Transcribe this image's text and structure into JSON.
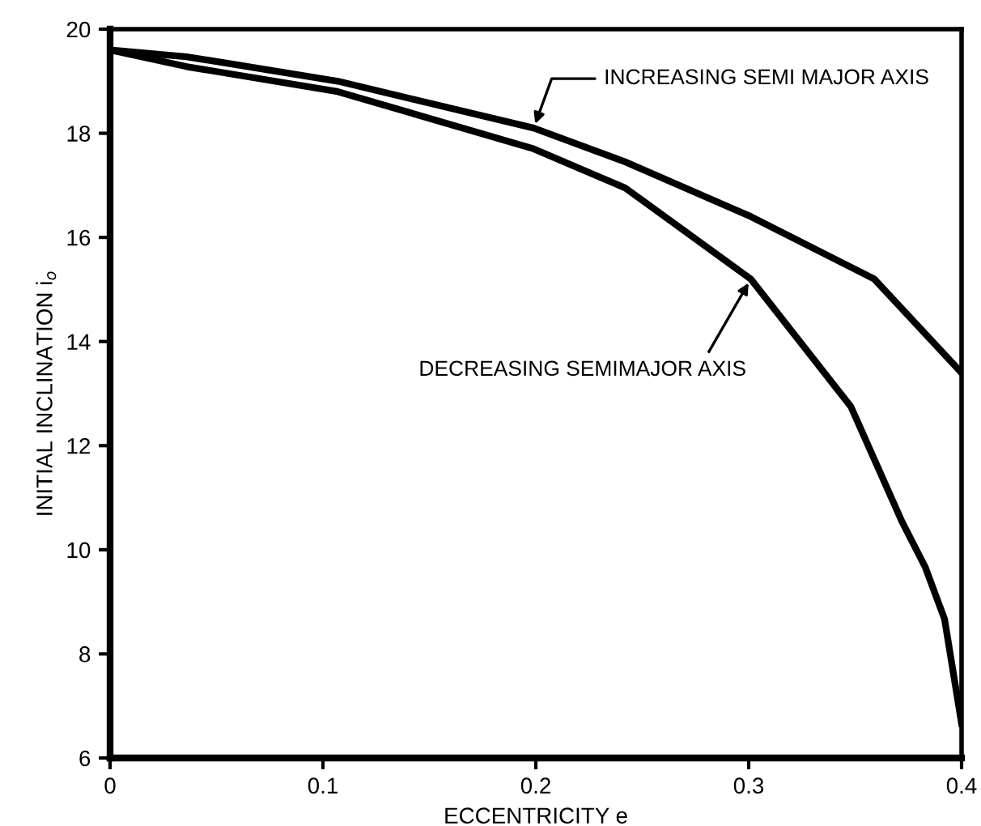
{
  "chart_data": {
    "type": "line",
    "xlabel": "ECCENTRICITY e",
    "ylabel": "INITIAL INCLINATION i$_{o}$",
    "xlim": [
      0,
      0.4
    ],
    "ylim": [
      6,
      20
    ],
    "xticks": [
      {
        "value": 0,
        "label": "0"
      },
      {
        "value": 0.1,
        "label": "0.1"
      },
      {
        "value": 0.2,
        "label": "0.2"
      },
      {
        "value": 0.3,
        "label": "0.3"
      },
      {
        "value": 0.4,
        "label": "0.4"
      }
    ],
    "yticks": [
      6,
      8,
      10,
      12,
      14,
      16,
      18,
      20
    ],
    "grid": false,
    "legend": false,
    "series": [
      {
        "color": "#000000",
        "x": [
          0,
          0.036,
          0.107,
          0.199,
          0.242,
          0.301,
          0.359,
          0.4
        ],
        "values": [
          19.6,
          19.47,
          19.0,
          18.1,
          17.45,
          16.4,
          15.2,
          13.4
        ]
      },
      {
        "color": "#000000",
        "x": [
          0,
          0.036,
          0.107,
          0.199,
          0.242,
          0.301,
          0.348,
          0.372,
          0.383,
          0.392,
          0.4
        ],
        "values": [
          19.6,
          19.28,
          18.8,
          17.7,
          16.95,
          15.2,
          12.75,
          10.54,
          9.66,
          8.67,
          6.66
        ]
      }
    ],
    "annotations": [
      {
        "text": "INCREASING SEMI MAJOR AXIS",
        "x": 0.199,
        "y": 18.1
      },
      {
        "text": "DECREASING SEMIMAJOR AXIS",
        "x": 0.301,
        "y": 15.2
      }
    ]
  }
}
